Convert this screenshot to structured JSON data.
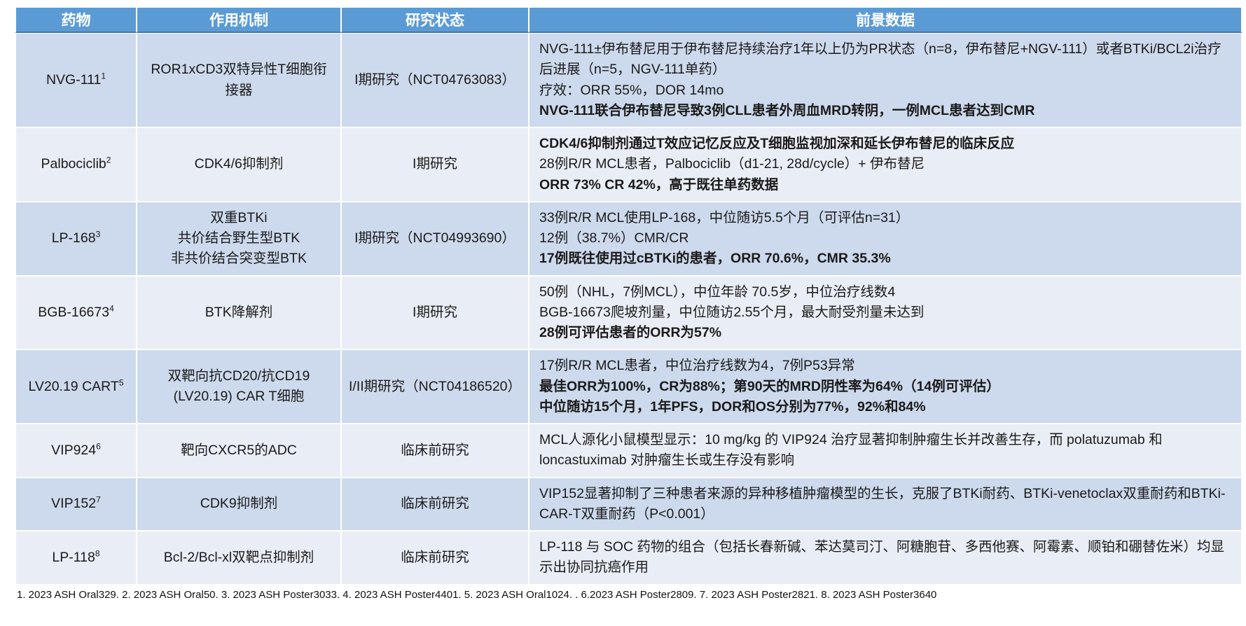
{
  "colors": {
    "header_bg": "#5B9BD5",
    "header_text": "#FFFFFF",
    "header_edge": "#4472A8",
    "band_dark": "#CDD9EC",
    "band_light": "#E9EDF5"
  },
  "table": {
    "headers": [
      "药物",
      "作用机制",
      "研究状态",
      "前景数据"
    ],
    "rows": [
      {
        "drug": "NVG-111",
        "sup": "1",
        "mechanism": [
          "ROR1xCD3双特异性T细胞衔接器"
        ],
        "status": "I期研究（NCT04763083）",
        "data": [
          {
            "text": "NVG-111±伊布替尼用于伊布替尼持续治疗1年以上仍为PR状态（n=8，伊布替尼+NGV-111）或者BTKi/BCL2i治疗后进展（n=5，NGV-111单药）",
            "bold": false
          },
          {
            "text": "疗效：ORR 55%，DOR 14mo",
            "bold": false
          },
          {
            "text": "NVG-111联合伊布替尼导致3例CLL患者外周血MRD转阴，一例MCL患者达到CMR",
            "bold": true
          }
        ]
      },
      {
        "drug": "Palbociclib",
        "sup": "2",
        "mechanism": [
          "CDK4/6抑制剂"
        ],
        "status": "I期研究",
        "data": [
          {
            "text": "CDK4/6抑制剂通过T效应记忆反应及T细胞监视加深和延长伊布替尼的临床反应",
            "bold": true
          },
          {
            "text": "28例R/R MCL患者，Palbociclib（d1-21, 28d/cycle）+ 伊布替尼",
            "bold": false
          },
          {
            "text": "ORR 73% CR 42%，高于既往单药数据",
            "bold": true
          }
        ]
      },
      {
        "drug": "LP-168",
        "sup": "3",
        "mechanism": [
          "双重BTKi",
          "共价结合野生型BTK",
          "非共价结合突变型BTK"
        ],
        "status": "I期研究（NCT04993690）",
        "data": [
          {
            "text": "33例R/R MCL使用LP-168，中位随访5.5个月（可评估n=31）",
            "bold": false
          },
          {
            "text": "12例（38.7%）CMR/CR",
            "bold": false
          },
          {
            "text": "17例既往使用过cBTKi的患者，ORR 70.6%，CMR 35.3%",
            "bold": true
          }
        ]
      },
      {
        "drug": "BGB-16673",
        "sup": "4",
        "mechanism": [
          "BTK降解剂"
        ],
        "status": "I期研究",
        "data": [
          {
            "text": "50例（NHL，7例MCL），中位年龄 70.5岁，中位治疗线数4",
            "bold": false
          },
          {
            "text": "BGB-16673爬坡剂量，中位随访2.55个月，最大耐受剂量未达到",
            "bold": false
          },
          {
            "text": "28例可评估患者的ORR为57%",
            "bold": true
          }
        ]
      },
      {
        "drug": "LV20.19 CART",
        "sup": "5",
        "mechanism": [
          "双靶向抗CD20/抗CD19",
          "(LV20.19) CAR T细胞"
        ],
        "status": "I/II期研究（NCT04186520）",
        "data": [
          {
            "text": "17例R/R MCL患者，中位治疗线数为4，7例P53异常",
            "bold": false
          },
          {
            "text": "最佳ORR为100%，CR为88%；第90天的MRD阴性率为64%（14例可评估）",
            "bold": true
          },
          {
            "text": "中位随访15个月，1年PFS，DOR和OS分别为77%，92%和84%",
            "bold": true
          }
        ]
      },
      {
        "drug": "VIP924",
        "sup": "6",
        "mechanism": [
          "靶向CXCR5的ADC"
        ],
        "status": "临床前研究",
        "data": [
          {
            "text": "MCL人源化小鼠模型显示：10 mg/kg 的 VIP924 治疗显著抑制肿瘤生长并改善生存，而 polatuzumab 和 loncastuximab 对肿瘤生长或生存没有影响",
            "bold": false
          }
        ]
      },
      {
        "drug": "VIP152",
        "sup": "7",
        "mechanism": [
          "CDK9抑制剂"
        ],
        "status": "临床前研究",
        "data": [
          {
            "text": "VIP152显著抑制了三种患者来源的异种移植肿瘤模型的生长，克服了BTKi耐药、BTKi-venetoclax双重耐药和BTKi-CAR-T双重耐药（P<0.001）",
            "bold": false
          }
        ]
      },
      {
        "drug": "LP-118",
        "sup": "8",
        "mechanism": [
          "Bcl-2/Bcl-xl双靶点抑制剂"
        ],
        "status": "临床前研究",
        "data": [
          {
            "text": "LP-118 与 SOC 药物的组合（包括长春新碱、苯达莫司汀、阿糖胞苷、多西他赛、阿霉素、顺铂和硼替佐米）均显示出协同抗癌作用",
            "bold": false
          }
        ]
      }
    ]
  },
  "footnote": "1. 2023 ASH Oral329. 2. 2023 ASH Oral50. 3.  2023 ASH Poster3033. 4. 2023 ASH Poster4401. 5. 2023 ASH Oral1024. . 6.2023 ASH Poster2809. 7. 2023 ASH Poster2821. 8. 2023 ASH Poster3640"
}
